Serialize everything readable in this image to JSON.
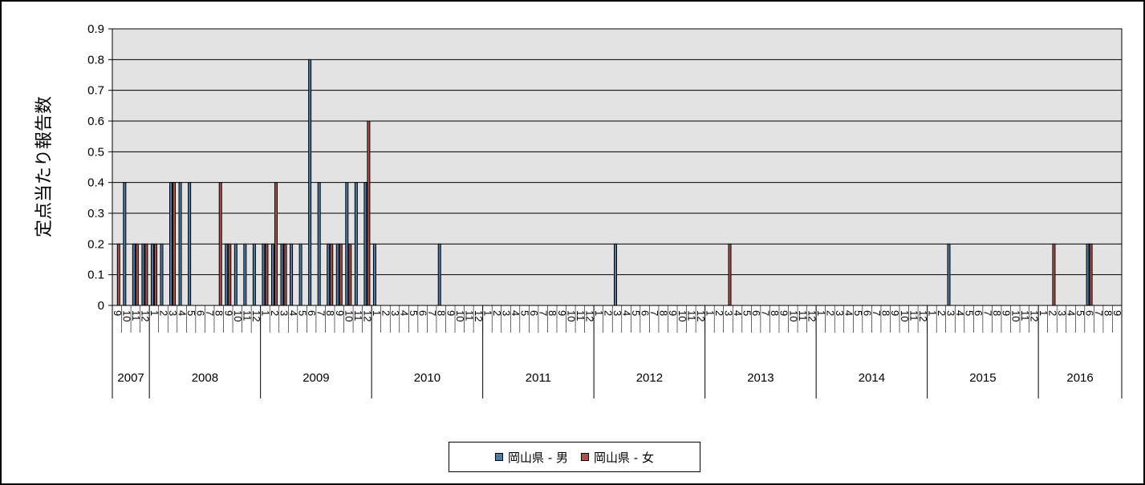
{
  "chart_data": {
    "type": "bar",
    "ylabel": "定点当たり報告数",
    "ylim": [
      0,
      0.9
    ],
    "yticks": [
      "0",
      "0.1",
      "0.2",
      "0.3",
      "0.4",
      "0.5",
      "0.6",
      "0.7",
      "0.8",
      "0.9"
    ],
    "grid": true,
    "legend_position": "bottom",
    "colors": {
      "plot_background": "#e3e3e3",
      "male": "#4a7ea8",
      "female": "#b0504b",
      "gridline": "#000000"
    },
    "years": [
      {
        "label": "2007",
        "months": [
          9,
          10,
          11,
          12
        ]
      },
      {
        "label": "2008",
        "months": [
          1,
          2,
          3,
          4,
          5,
          6,
          7,
          8,
          9,
          10,
          11,
          12
        ]
      },
      {
        "label": "2009",
        "months": [
          1,
          2,
          3,
          4,
          5,
          6,
          7,
          8,
          9,
          10,
          11,
          12
        ]
      },
      {
        "label": "2010",
        "months": [
          1,
          2,
          3,
          4,
          5,
          6,
          7,
          8,
          9,
          10,
          11,
          12
        ]
      },
      {
        "label": "2011",
        "months": [
          1,
          2,
          3,
          4,
          5,
          6,
          7,
          8,
          9,
          10,
          11,
          12
        ]
      },
      {
        "label": "2012",
        "months": [
          1,
          2,
          3,
          4,
          5,
          6,
          7,
          8,
          9,
          10,
          11,
          12
        ]
      },
      {
        "label": "2013",
        "months": [
          1,
          2,
          3,
          4,
          5,
          6,
          7,
          8,
          9,
          10,
          11,
          12
        ]
      },
      {
        "label": "2014",
        "months": [
          1,
          2,
          3,
          4,
          5,
          6,
          7,
          8,
          9,
          10,
          11,
          12
        ]
      },
      {
        "label": "2015",
        "months": [
          1,
          2,
          3,
          4,
          5,
          6,
          7,
          8,
          9,
          10,
          11,
          12
        ]
      },
      {
        "label": "2016",
        "months": [
          1,
          2,
          3,
          4,
          5,
          6,
          7,
          8,
          9
        ]
      }
    ],
    "series": [
      {
        "name": "岡山県 - 男",
        "values": [
          0,
          0.4,
          0.2,
          0.2,
          0.2,
          0.2,
          0.4,
          0.4,
          0.4,
          0,
          0,
          0,
          0.2,
          0.2,
          0.2,
          0.2,
          0.2,
          0.2,
          0.2,
          0.2,
          0.2,
          0.8,
          0.4,
          0.2,
          0.2,
          0.4,
          0.4,
          0.4,
          0.2,
          0,
          0,
          0,
          0,
          0,
          0,
          0.2,
          0,
          0,
          0,
          0,
          0,
          0,
          0,
          0,
          0,
          0,
          0,
          0,
          0,
          0,
          0,
          0,
          0,
          0,
          0.2,
          0,
          0,
          0,
          0,
          0,
          0,
          0,
          0,
          0,
          0,
          0,
          0,
          0,
          0,
          0,
          0,
          0,
          0,
          0,
          0,
          0,
          0,
          0,
          0,
          0,
          0,
          0,
          0,
          0,
          0,
          0,
          0,
          0,
          0,
          0,
          0.2,
          0,
          0,
          0,
          0,
          0,
          0,
          0,
          0,
          0,
          0,
          0,
          0,
          0,
          0,
          0.2,
          0,
          0,
          0
        ]
      },
      {
        "name": "岡山県 - 女",
        "values": [
          0.2,
          0,
          0.2,
          0.2,
          0.2,
          0,
          0.4,
          0,
          0,
          0,
          0,
          0.4,
          0.2,
          0,
          0,
          0,
          0.2,
          0.4,
          0.2,
          0,
          0,
          0,
          0,
          0.2,
          0.2,
          0.2,
          0,
          0.6,
          0,
          0,
          0,
          0,
          0,
          0,
          0,
          0,
          0,
          0,
          0,
          0,
          0,
          0,
          0,
          0,
          0,
          0,
          0,
          0,
          0,
          0,
          0,
          0,
          0,
          0,
          0,
          0,
          0,
          0,
          0,
          0,
          0,
          0,
          0,
          0,
          0,
          0,
          0.2,
          0,
          0,
          0,
          0,
          0,
          0,
          0,
          0,
          0,
          0,
          0,
          0,
          0,
          0,
          0,
          0,
          0,
          0,
          0,
          0,
          0,
          0,
          0,
          0,
          0,
          0,
          0,
          0,
          0,
          0,
          0,
          0,
          0,
          0,
          0.2,
          0,
          0,
          0,
          0.2,
          0,
          0,
          0
        ]
      }
    ]
  },
  "legend": {
    "male_label": "岡山県 - 男",
    "female_label": "岡山県 - 女"
  }
}
